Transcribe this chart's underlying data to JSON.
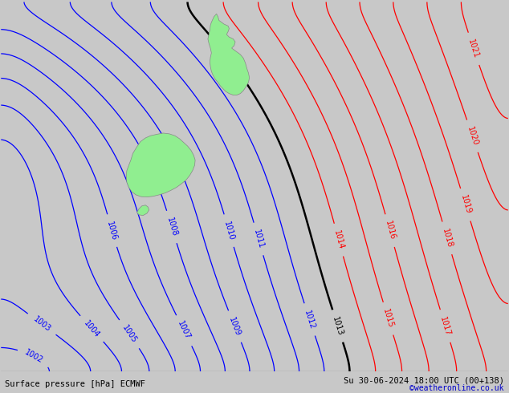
{
  "title_left": "Surface pressure [hPa] ECMWF",
  "title_right": "Su 30-06-2024 18:00 UTC (00+138)",
  "copyright": "©weatheronline.co.uk",
  "bg_color": "#c8c8c8",
  "land_color": "#90ee90",
  "land_edge": "#888888",
  "figsize": [
    6.34,
    4.9
  ],
  "dpi": 100,
  "blue_levels": [
    1002,
    1003,
    1004,
    1005,
    1006,
    1007,
    1008,
    1009,
    1010,
    1011,
    1012
  ],
  "red_levels": [
    1014,
    1015,
    1016,
    1017,
    1018,
    1019,
    1020,
    1021
  ],
  "black_levels": [
    1013
  ],
  "blue_lw": 0.9,
  "red_lw": 0.9,
  "black_lw": 1.8,
  "label_fontsize": 7,
  "bottom_bar_color": "#b0b0b0",
  "bottom_text_color": "#000000",
  "copyright_color": "#0000cc"
}
